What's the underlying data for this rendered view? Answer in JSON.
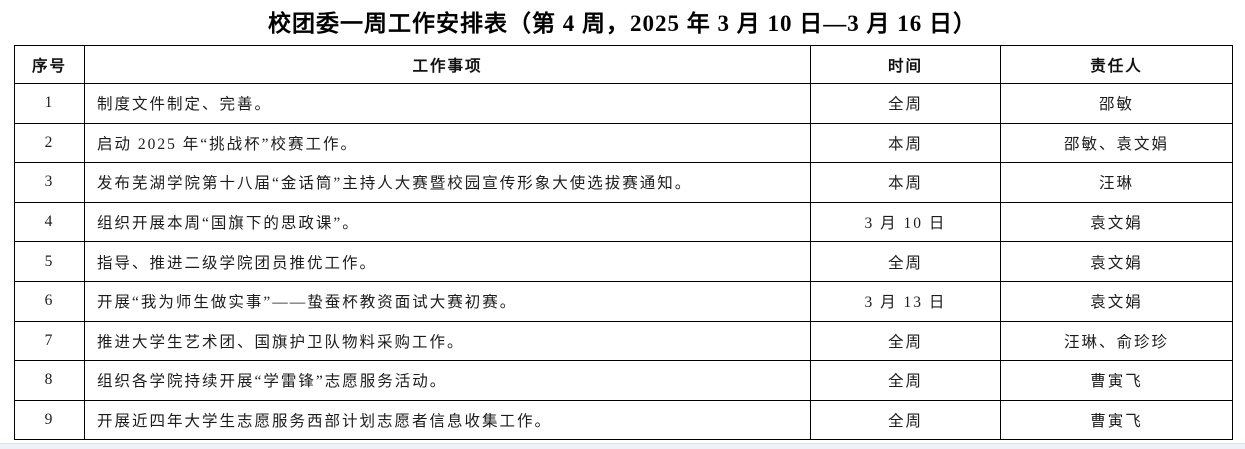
{
  "page": {
    "title": "校团委一周工作安排表（第 4 周，2025 年 3 月 10 日—3 月 16 日）",
    "bottom_strip_color": "#eef2f8"
  },
  "table": {
    "columns": [
      "序号",
      "工作事项",
      "时间",
      "责任人"
    ],
    "rows": [
      {
        "seq": "1",
        "item": "制度文件制定、完善。",
        "time": "全周",
        "person": "邵敏"
      },
      {
        "seq": "2",
        "item": "启动 2025 年“挑战杯”校赛工作。",
        "time": "本周",
        "person": "邵敏、袁文娟"
      },
      {
        "seq": "3",
        "item": "发布芜湖学院第十八届“金话筒”主持人大赛暨校园宣传形象大使选拔赛通知。",
        "time": "本周",
        "person": "汪琳"
      },
      {
        "seq": "4",
        "item": "组织开展本周“国旗下的思政课”。",
        "time": "3 月 10 日",
        "person": "袁文娟"
      },
      {
        "seq": "5",
        "item": "指导、推进二级学院团员推优工作。",
        "time": "全周",
        "person": "袁文娟"
      },
      {
        "seq": "6",
        "item": "开展“我为师生做实事”——蛰蚕杯教资面试大赛初赛。",
        "time": "3 月 13 日",
        "person": "袁文娟"
      },
      {
        "seq": "7",
        "item": "推进大学生艺术团、国旗护卫队物料采购工作。",
        "time": "全周",
        "person": "汪琳、俞珍珍"
      },
      {
        "seq": "8",
        "item": "组织各学院持续开展“学雷锋”志愿服务活动。",
        "time": "全周",
        "person": "曹寅飞"
      },
      {
        "seq": "9",
        "item": "开展近四年大学生志愿服务西部计划志愿者信息收集工作。",
        "time": "全周",
        "person": "曹寅飞"
      }
    ]
  }
}
